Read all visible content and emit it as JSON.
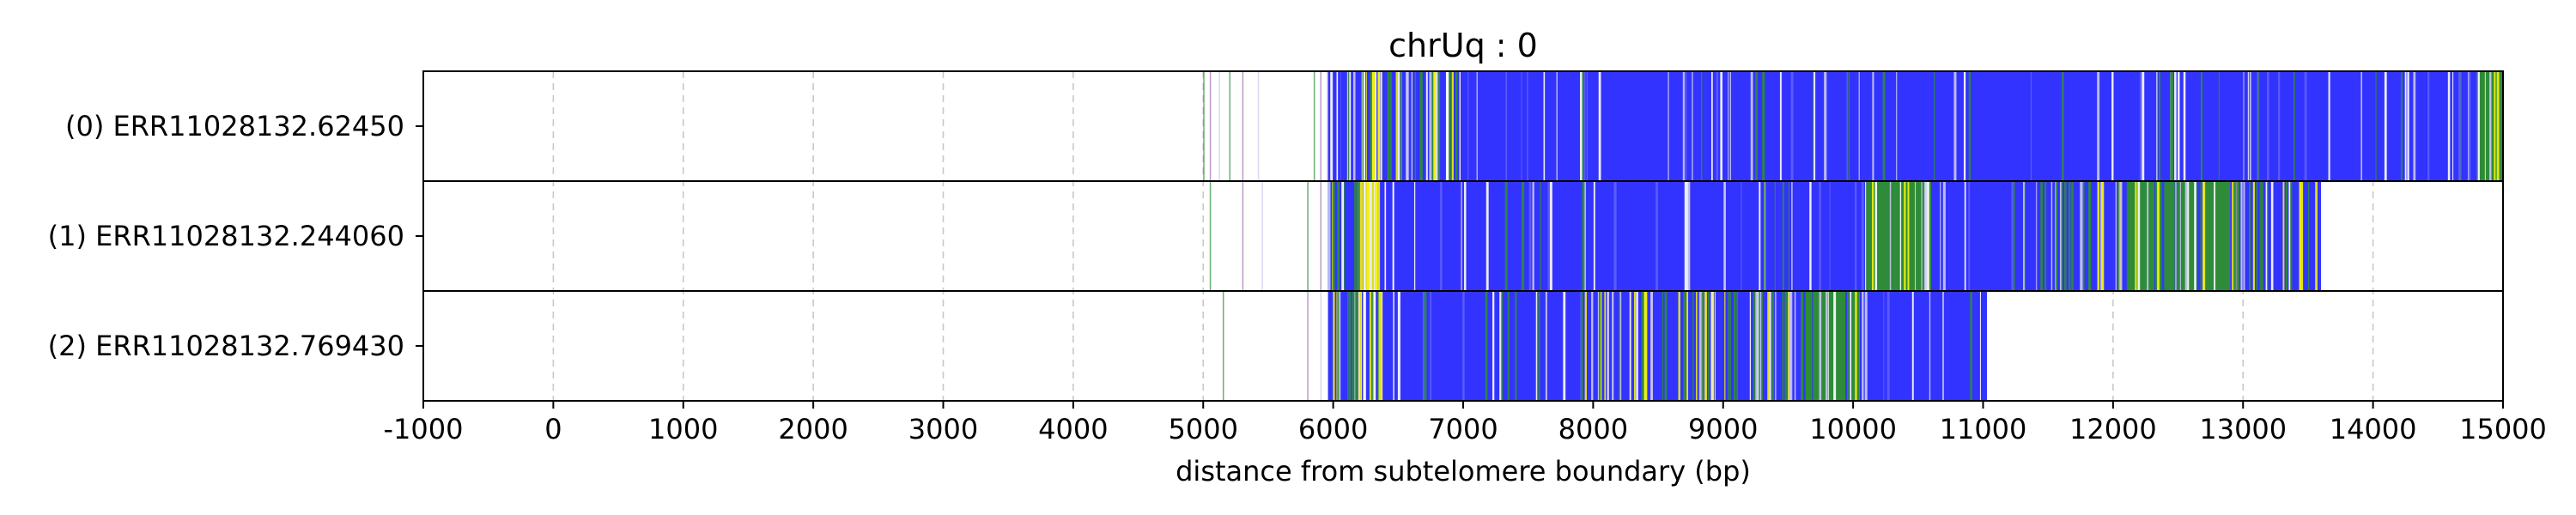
{
  "chart_data": {
    "type": "heatmap",
    "title": "chrUq : 0",
    "xlabel": "distance from subtelomere boundary (bp)",
    "ylabel": "",
    "xlim": [
      -1000,
      15000
    ],
    "xticks": [
      -1000,
      0,
      1000,
      2000,
      3000,
      4000,
      5000,
      6000,
      7000,
      8000,
      9000,
      10000,
      11000,
      12000,
      13000,
      14000,
      15000
    ],
    "xtick_labels": [
      "-1000",
      "0",
      "1000",
      "2000",
      "3000",
      "4000",
      "5000",
      "6000",
      "7000",
      "8000",
      "9000",
      "10000",
      "11000",
      "12000",
      "13000",
      "14000",
      "15000"
    ],
    "grid": "vertical dashed",
    "legend": "none",
    "colors": {
      "telomere_blue": "#3333ff",
      "green": "#2e8b3a",
      "yellow": "#f2f20a",
      "pale": "#c9c9f0",
      "grid": "#c8c8c8"
    },
    "rows": [
      {
        "label": "(0) ERR11028132.62450",
        "read_start": 5960,
        "read_end": 15000,
        "sparse_marks": [
          5000,
          5050,
          5120,
          5200,
          5300,
          5420,
          5850,
          5900,
          5950
        ],
        "segments": [
          {
            "start": 5960,
            "end": 6060,
            "kind": "mixed"
          },
          {
            "start": 6060,
            "end": 6260,
            "kind": "dense"
          },
          {
            "start": 6260,
            "end": 6360,
            "kind": "yellow"
          },
          {
            "start": 6360,
            "end": 7000,
            "kind": "dense"
          },
          {
            "start": 7000,
            "end": 14800,
            "kind": "blue"
          },
          {
            "start": 14800,
            "end": 15000,
            "kind": "green"
          }
        ]
      },
      {
        "label": "(1) ERR11028132.244060",
        "read_start": 5960,
        "read_end": 13600,
        "sparse_marks": [
          5050,
          5300,
          5450,
          5800,
          5900
        ],
        "segments": [
          {
            "start": 5960,
            "end": 6200,
            "kind": "dense"
          },
          {
            "start": 6200,
            "end": 6360,
            "kind": "yellow"
          },
          {
            "start": 6360,
            "end": 10100,
            "kind": "blue"
          },
          {
            "start": 10100,
            "end": 10600,
            "kind": "green"
          },
          {
            "start": 10600,
            "end": 11400,
            "kind": "blue"
          },
          {
            "start": 11400,
            "end": 12100,
            "kind": "mixed"
          },
          {
            "start": 12100,
            "end": 12900,
            "kind": "green"
          },
          {
            "start": 12900,
            "end": 13600,
            "kind": "mixed"
          }
        ]
      },
      {
        "label": "(2) ERR11028132.769430",
        "read_start": 5960,
        "read_end": 11030,
        "sparse_marks": [
          5150,
          5800,
          5900
        ],
        "segments": [
          {
            "start": 5960,
            "end": 6220,
            "kind": "dense"
          },
          {
            "start": 6220,
            "end": 6380,
            "kind": "yellow"
          },
          {
            "start": 6380,
            "end": 7900,
            "kind": "blue"
          },
          {
            "start": 7900,
            "end": 9600,
            "kind": "mixed"
          },
          {
            "start": 9600,
            "end": 10050,
            "kind": "green"
          },
          {
            "start": 10050,
            "end": 11030,
            "kind": "blue"
          }
        ]
      }
    ]
  }
}
